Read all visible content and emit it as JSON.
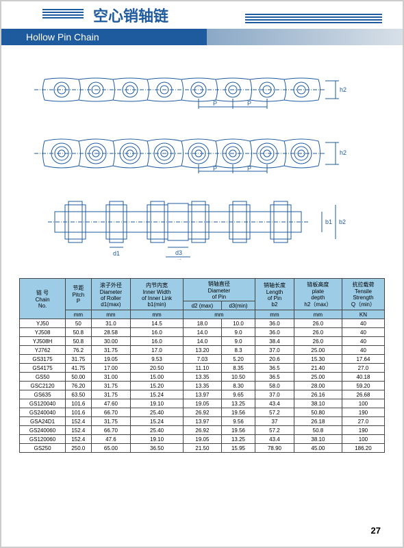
{
  "title_cn": "空心销轴链",
  "title_en": "Hollow Pin Chain",
  "page_number": "27",
  "diagram_labels": {
    "P": "P",
    "h2": "h2",
    "d1": "d1",
    "d2": "d2",
    "d3": "d3",
    "b1": "b1",
    "b2": "b2"
  },
  "table": {
    "header_bg": "#9ccce6",
    "columns": [
      {
        "cn": "链 号",
        "en": "Chain",
        "sub": "No.",
        "unit": ""
      },
      {
        "cn": "节距",
        "en": "Pitch",
        "sub": "P",
        "unit": "mm"
      },
      {
        "cn": "滚子外径",
        "en": "Diameter",
        "en2": "of Roller",
        "sub": "d1(max)",
        "unit": "mm"
      },
      {
        "cn": "内节内宽",
        "en": "Inner Width",
        "en2": "of Inner Link",
        "sub": "b1(min)",
        "unit": "mm"
      },
      {
        "cn": "销轴直径",
        "en": "Diameter",
        "en2": "of Pin",
        "unit": "mm",
        "split": [
          {
            "sub": "d2 (max)"
          },
          {
            "sub": "d3(min)"
          }
        ]
      },
      {
        "cn": "销轴长度",
        "en": "Length",
        "en2": "of Pin",
        "sub": "b2",
        "unit": "mm"
      },
      {
        "cn": "链板高度",
        "en": "plate",
        "en2": "depth",
        "sub": "h2（max）",
        "unit": "mm"
      },
      {
        "cn": "抗拉载荷",
        "en": "Tensile",
        "en2": "Strength",
        "sub": "Q（min）",
        "unit": "KN"
      }
    ],
    "rows": [
      [
        "YJ50",
        "50",
        "31.0",
        "14.5",
        "18.0",
        "10.0",
        "36.0",
        "26.0",
        "40"
      ],
      [
        "YJ508",
        "50.8",
        "28.58",
        "16.0",
        "14.0",
        "9.0",
        "36.0",
        "26.0",
        "40"
      ],
      [
        "YJ508H",
        "50.8",
        "30.00",
        "16.0",
        "14.0",
        "9.0",
        "38.4",
        "26.0",
        "40"
      ],
      [
        "YJ762",
        "76.2",
        "31.75",
        "17.0",
        "13.20",
        "8.3",
        "37.0",
        "25.00",
        "40"
      ],
      [
        "GS3175",
        "31.75",
        "19.05",
        "9.53",
        "7.03",
        "5.20",
        "20.6",
        "15.30",
        "17.64"
      ],
      [
        "GS4175",
        "41.75",
        "17.00",
        "20.50",
        "11.10",
        "8.35",
        "36.5",
        "21.40",
        "27.0"
      ],
      [
        "GS50",
        "50.00",
        "31.00",
        "15.00",
        "13.35",
        "10.50",
        "36.5",
        "25.00",
        "40.18"
      ],
      [
        "GSC2120",
        "76.20",
        "31.75",
        "15.20",
        "13.35",
        "8.30",
        "58.0",
        "28.00",
        "59.20"
      ],
      [
        "GS635",
        "63.50",
        "31.75",
        "15.24",
        "13.97",
        "9.65",
        "37.0",
        "26.16",
        "26.68"
      ],
      [
        "GS120040",
        "101.6",
        "47.60",
        "19.10",
        "19.05",
        "13.25",
        "43.4",
        "38.10",
        "100"
      ],
      [
        "GS240040",
        "101.6",
        "66.70",
        "25.40",
        "26.92",
        "19.56",
        "57.2",
        "50.80",
        "190"
      ],
      [
        "GSA24D1",
        "152.4",
        "31.75",
        "15.24",
        "13.97",
        "9.56",
        "37",
        "26.18",
        "27.0"
      ],
      [
        "GS240060",
        "152.4",
        "66.70",
        "25.40",
        "26.92",
        "19.56",
        "57.2",
        "50.8",
        "190"
      ],
      [
        "GS120060",
        "152.4",
        "47.6",
        "19.10",
        "19.05",
        "13.25",
        "43.4",
        "38.10",
        "100"
      ],
      [
        "GS250",
        "250.0",
        "65.00",
        "36.50",
        "21.50",
        "15.95",
        "78.90",
        "45.00",
        "186.20"
      ]
    ]
  }
}
